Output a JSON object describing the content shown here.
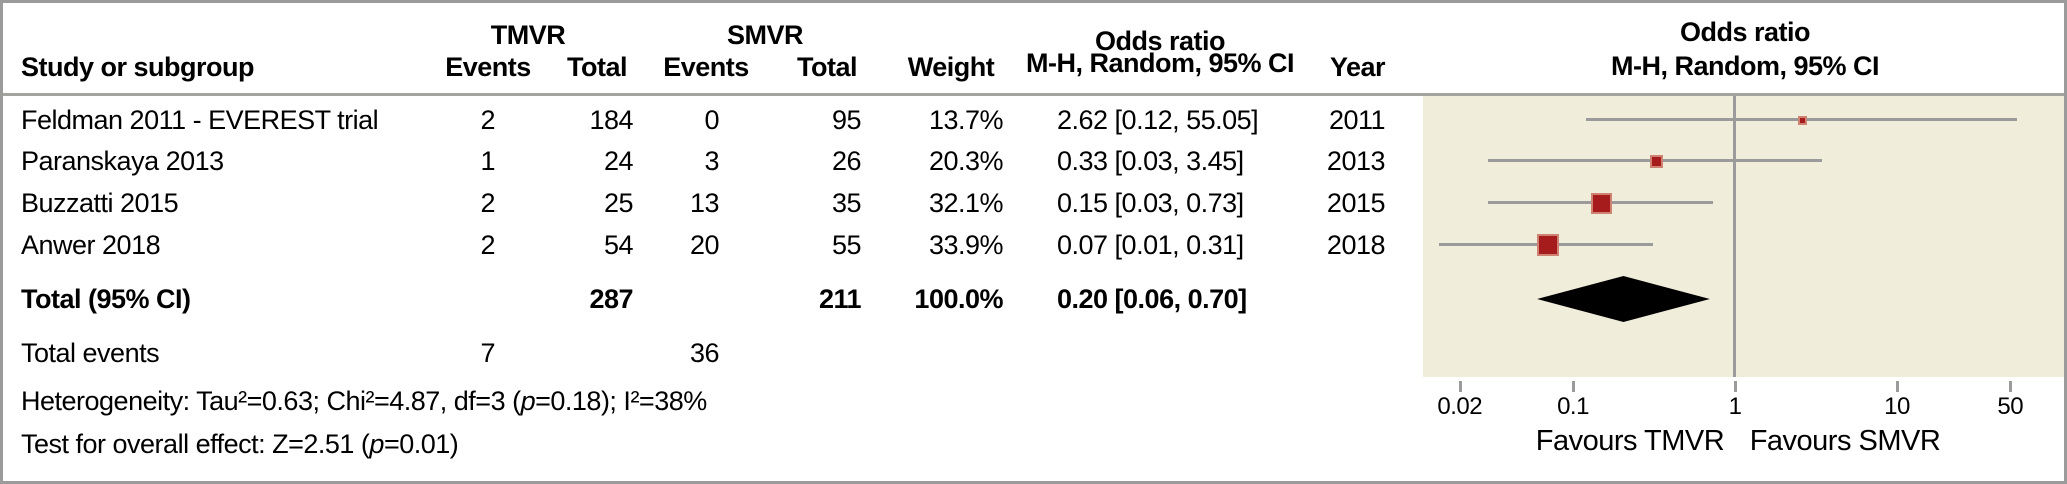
{
  "table": {
    "headers": {
      "study": "Study or subgroup",
      "tmvr": "TMVR",
      "smvr": "SMVR",
      "events": "Events",
      "total": "Total",
      "weight": "Weight",
      "or_line1": "Odds ratio",
      "or_line2": "M-H, Random, 95% CI",
      "year": "Year"
    },
    "rows": [
      {
        "study": "Feldman 2011 - EVEREST trial",
        "tmvr_events": "2",
        "tmvr_total": "184",
        "smvr_events": "0",
        "smvr_total": "95",
        "weight": "13.7%",
        "ci": "2.62 [0.12, 55.05]",
        "year": "2011"
      },
      {
        "study": "Paranskaya 2013",
        "tmvr_events": "1",
        "tmvr_total": "24",
        "smvr_events": "3",
        "smvr_total": "26",
        "weight": "20.3%",
        "ci": "0.33 [0.03, 3.45]",
        "year": "2013"
      },
      {
        "study": "Buzzatti 2015",
        "tmvr_events": "2",
        "tmvr_total": "25",
        "smvr_events": "13",
        "smvr_total": "35",
        "weight": "32.1%",
        "ci": "0.15 [0.03, 0.73]",
        "year": "2015"
      },
      {
        "study": "Anwer 2018",
        "tmvr_events": "2",
        "tmvr_total": "54",
        "smvr_events": "20",
        "smvr_total": "55",
        "weight": "33.9%",
        "ci": "0.07 [0.01, 0.31]",
        "year": "2018"
      }
    ],
    "total_row": {
      "label": "Total (95% CI)",
      "tmvr_total": "287",
      "smvr_total": "211",
      "weight": "100.0%",
      "ci": "0.20 [0.06, 0.70]"
    },
    "total_events": {
      "label": "Total events",
      "tmvr": "7",
      "smvr": "36"
    },
    "het_pre": "Heterogeneity: Tau²=0.63; Chi²=4.87, df=3 (",
    "het_p": "p",
    "het_post": "=0.18); I²=38%",
    "ovr_pre": "Test for overall effect: Z=2.51 (",
    "ovr_p": "p",
    "ovr_post": "=0.01)"
  },
  "plot": {
    "or_line1": "Odds ratio",
    "or_line2": "M-H, Random, 95% CI",
    "favours_left": "Favours TMVR",
    "favours_right": "Favours SMVR"
  },
  "chart_data": {
    "type": "forest",
    "effect_measure": "Odds ratio, M-H, Random, 95% CI",
    "x_scale": "log",
    "x_ticks": [
      0.02,
      0.1,
      1,
      10,
      50
    ],
    "x_axis_labels": [
      "Favours TMVR",
      "Favours SMVR"
    ],
    "studies": [
      {
        "name": "Feldman 2011 - EVEREST trial",
        "tmvr_events": 2,
        "tmvr_total": 184,
        "smvr_events": 0,
        "smvr_total": 95,
        "weight_pct": 13.7,
        "or": 2.62,
        "ci_low": 0.12,
        "ci_high": 55.05,
        "year": 2011
      },
      {
        "name": "Paranskaya 2013",
        "tmvr_events": 1,
        "tmvr_total": 24,
        "smvr_events": 3,
        "smvr_total": 26,
        "weight_pct": 20.3,
        "or": 0.33,
        "ci_low": 0.03,
        "ci_high": 3.45,
        "year": 2013
      },
      {
        "name": "Buzzatti 2015",
        "tmvr_events": 2,
        "tmvr_total": 25,
        "smvr_events": 13,
        "smvr_total": 35,
        "weight_pct": 32.1,
        "or": 0.15,
        "ci_low": 0.03,
        "ci_high": 0.73,
        "year": 2015
      },
      {
        "name": "Anwer 2018",
        "tmvr_events": 2,
        "tmvr_total": 54,
        "smvr_events": 20,
        "smvr_total": 55,
        "weight_pct": 33.9,
        "or": 0.07,
        "ci_low": 0.01,
        "ci_high": 0.31,
        "year": 2018
      }
    ],
    "total": {
      "or": 0.2,
      "ci_low": 0.06,
      "ci_high": 0.7,
      "tmvr_events": 7,
      "tmvr_total": 287,
      "smvr_events": 36,
      "smvr_total": 211,
      "weight_pct": 100.0
    },
    "heterogeneity": "Tau²=0.63; Chi²=4.87, df=3 (p=0.18); I²=38%",
    "overall_effect": "Z=2.51 (p=0.01)",
    "colors": {
      "marker_fill": "#a61c1c",
      "marker_border": "#cf8272",
      "ci_line": "#9b9b9b",
      "plot_background": "#f0edda",
      "summary_diamond": "#000000",
      "grid_line": "#9b9b9b"
    }
  }
}
